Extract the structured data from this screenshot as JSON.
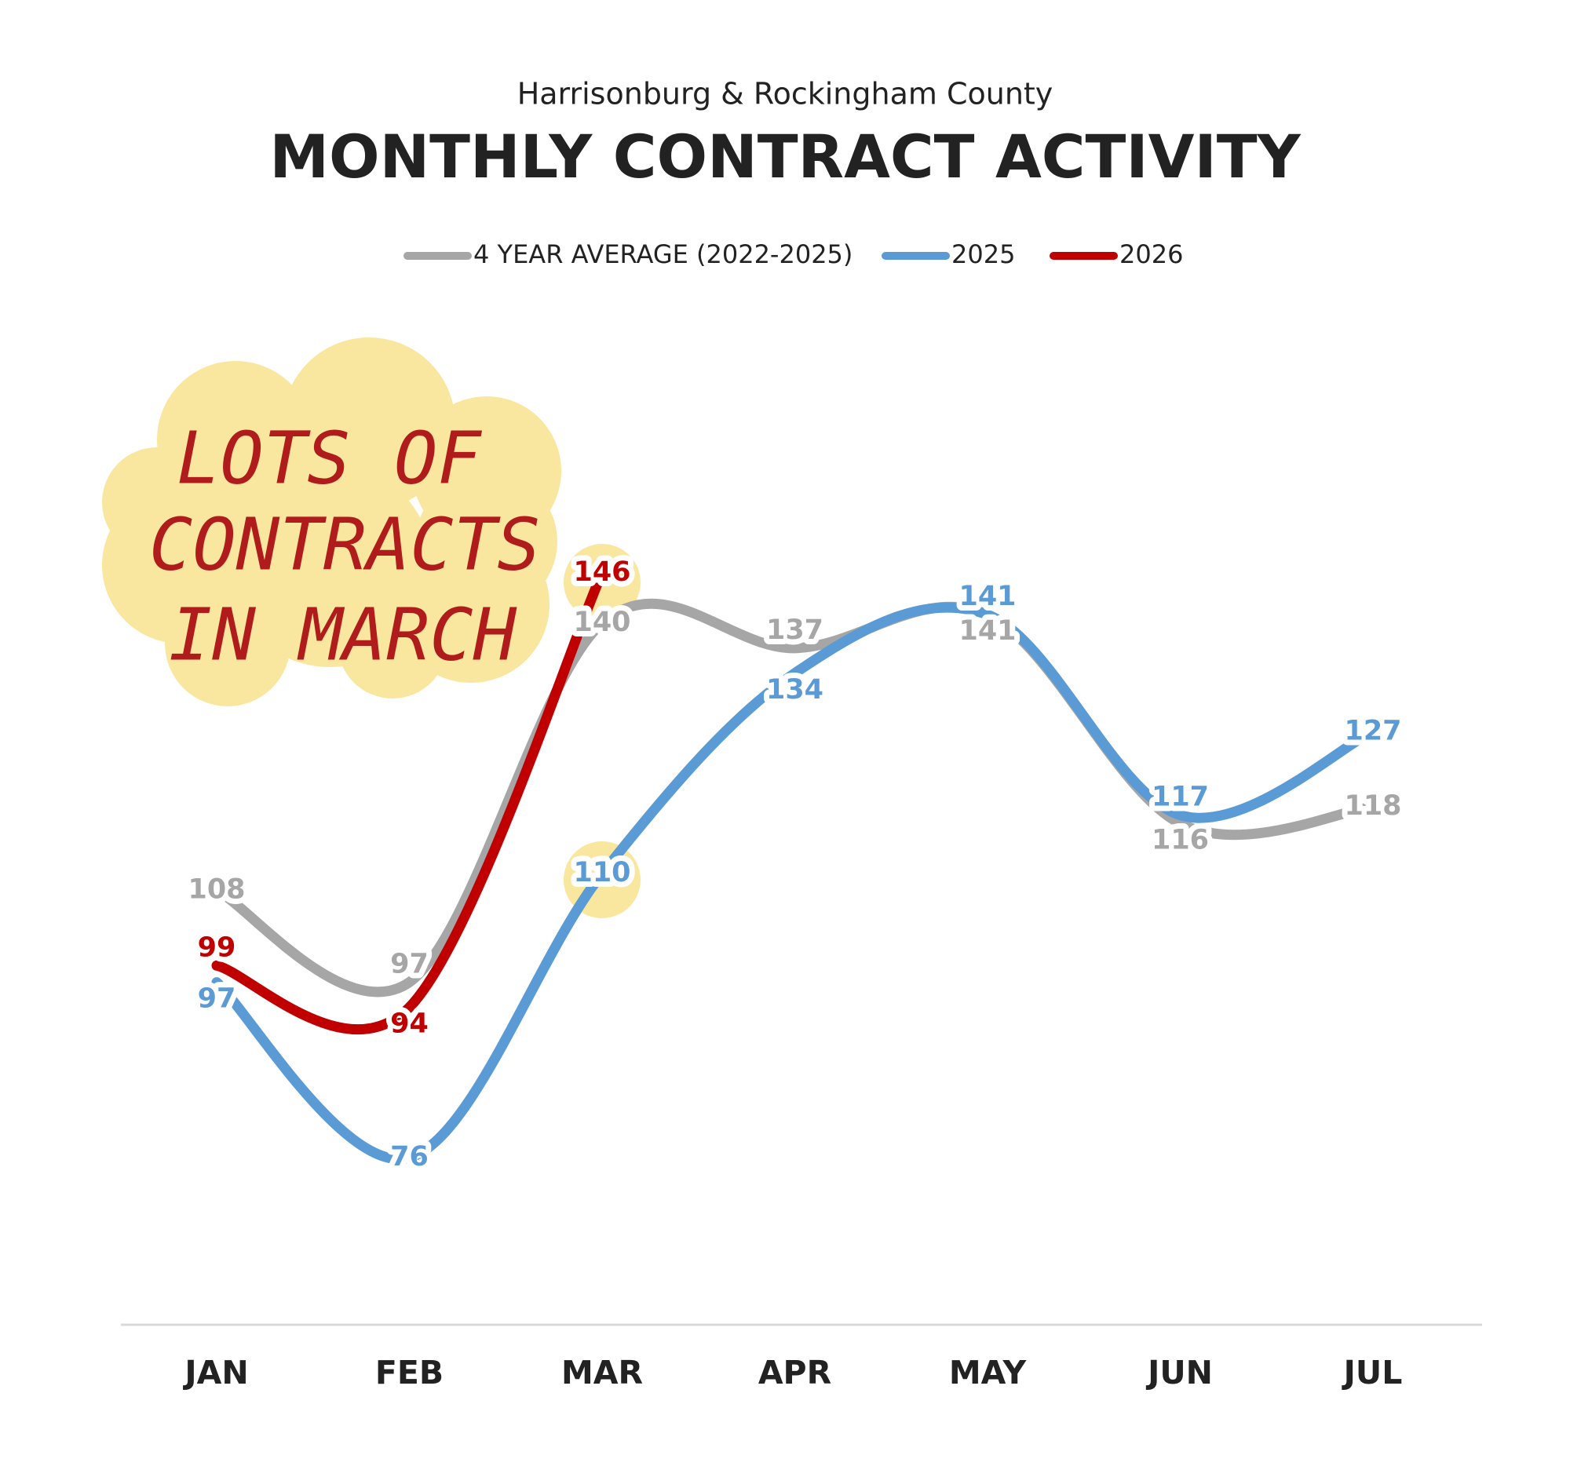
{
  "chart_data": {
    "type": "line",
    "subtitle": "Harrisonburg & Rockingham County",
    "title": "MONTHLY CONTRACT ACTIVITY",
    "categories": [
      "JAN",
      "FEB",
      "MAR",
      "APR",
      "MAY",
      "JUN",
      "JUL"
    ],
    "series": [
      {
        "name": "4 YEAR AVERAGE (2022-2025)",
        "color": "#a6a6a6",
        "values": [
          108,
          97,
          140,
          137,
          141,
          116,
          118
        ]
      },
      {
        "name": "2025",
        "color": "#5b9bd5",
        "values": [
          97,
          76,
          110,
          134,
          141,
          117,
          127
        ]
      },
      {
        "name": "2026",
        "color": "#c00000",
        "values": [
          99,
          94,
          146,
          null,
          null,
          null,
          null
        ]
      }
    ],
    "ylim": [
      56,
      160
    ],
    "annotation": [
      "LOTS OF",
      "CONTRACTS",
      "IN MARCH"
    ]
  }
}
